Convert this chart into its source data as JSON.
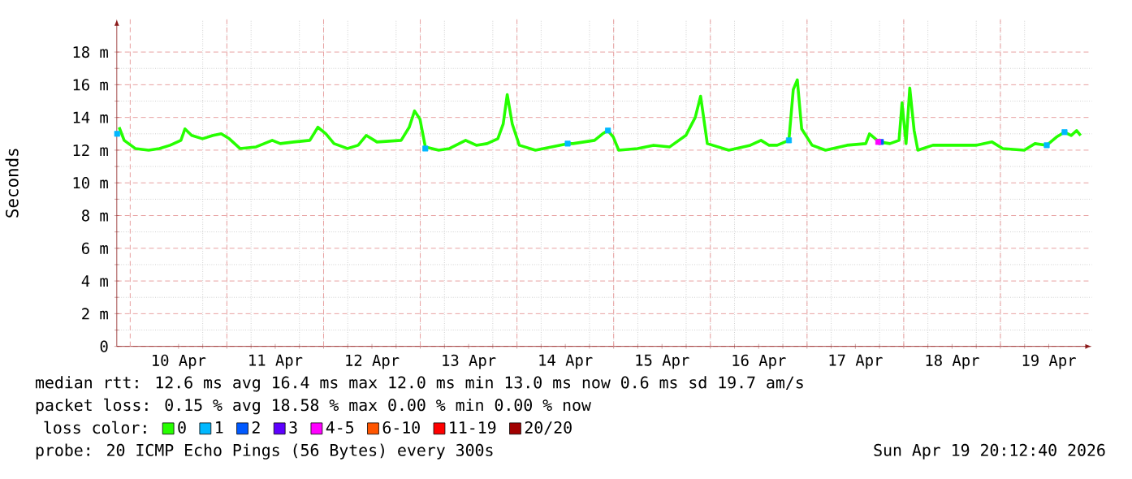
{
  "chart_data": {
    "type": "line",
    "ylabel": "Seconds",
    "legend_title": "loss color:",
    "legend": "bottom",
    "grid": true,
    "xlim": [
      "2026-04-09T20:40",
      "2026-04-19T22:40"
    ],
    "xticks": [
      {
        "value": "2026-04-10T12:00",
        "label": "10 Apr"
      },
      {
        "value": "2026-04-11T12:00",
        "label": "11 Apr"
      },
      {
        "value": "2026-04-12T12:00",
        "label": "12 Apr"
      },
      {
        "value": "2026-04-13T12:00",
        "label": "13 Apr"
      },
      {
        "value": "2026-04-14T12:00",
        "label": "14 Apr"
      },
      {
        "value": "2026-04-15T12:00",
        "label": "15 Apr"
      },
      {
        "value": "2026-04-16T12:00",
        "label": "16 Apr"
      },
      {
        "value": "2026-04-17T12:00",
        "label": "17 Apr"
      },
      {
        "value": "2026-04-18T12:00",
        "label": "18 Apr"
      },
      {
        "value": "2026-04-19T12:00",
        "label": "19 Apr"
      },
      {
        "value": "2026-04-10T00:00",
        "label": null
      },
      {
        "value": "2026-04-11T00:00",
        "label": null
      },
      {
        "value": "2026-04-12T00:00",
        "label": null
      },
      {
        "value": "2026-04-13T00:00",
        "label": null
      },
      {
        "value": "2026-04-14T00:00",
        "label": null
      },
      {
        "value": "2026-04-15T00:00",
        "label": null
      },
      {
        "value": "2026-04-16T00:00",
        "label": null
      },
      {
        "value": "2026-04-17T00:00",
        "label": null
      },
      {
        "value": "2026-04-18T00:00",
        "label": null
      },
      {
        "value": "2026-04-19T00:00",
        "label": null
      }
    ],
    "ylim": [
      0,
      20
    ],
    "yticks": [
      0,
      {
        "value": 2,
        "label": "2 m"
      },
      {
        "value": 4,
        "label": "4 m"
      },
      {
        "value": 6,
        "label": "6 m"
      },
      {
        "value": 8,
        "label": "8 m"
      },
      {
        "value": 10,
        "label": "10 m"
      },
      {
        "value": 12,
        "label": "12 m"
      },
      {
        "value": 14,
        "label": "14 m"
      },
      {
        "value": 16,
        "label": "16 m"
      },
      {
        "value": 18,
        "label": "18 m"
      }
    ],
    "series": [
      {
        "name": "0",
        "color": "#26ff00",
        "x": [
          "2026-04-09T21:15",
          "2026-04-09T22:30",
          "2026-04-10T01:15",
          "2026-04-10T04:35",
          "2026-04-10T07:15",
          "2026-04-10T09:55",
          "2026-04-10T12:35",
          "2026-04-10T13:35",
          "2026-04-10T15:15",
          "2026-04-10T17:55",
          "2026-04-10T20:35",
          "2026-04-10T22:35",
          "2026-04-11T00:35",
          "2026-04-11T03:15",
          "2026-04-11T07:15",
          "2026-04-11T11:15",
          "2026-04-11T13:15",
          "2026-04-11T16:35",
          "2026-04-11T20:35",
          "2026-04-11T22:35",
          "2026-04-12T00:35",
          "2026-04-12T02:35",
          "2026-04-12T05:55",
          "2026-04-12T08:35",
          "2026-04-12T10:35",
          "2026-04-12T13:15",
          "2026-04-12T19:15",
          "2026-04-12T21:15",
          "2026-04-12T22:35",
          "2026-04-12T23:55",
          "2026-04-13T01:15",
          "2026-04-13T04:35",
          "2026-04-13T07:15",
          "2026-04-13T11:15",
          "2026-04-13T13:55",
          "2026-04-13T16:35",
          "2026-04-13T19:15",
          "2026-04-13T20:35",
          "2026-04-13T21:35",
          "2026-04-13T22:50",
          "2026-04-14T00:35",
          "2026-04-14T04:35",
          "2026-04-14T08:35",
          "2026-04-14T12:35",
          "2026-04-14T13:55",
          "2026-04-14T19:15",
          "2026-04-14T21:15",
          "2026-04-14T22:35",
          "2026-04-14T23:55",
          "2026-04-15T01:15",
          "2026-04-15T05:55",
          "2026-04-15T09:55",
          "2026-04-15T13:55",
          "2026-04-15T17:55",
          "2026-04-15T20:15",
          "2026-04-15T21:35",
          "2026-04-15T23:15",
          "2026-04-16T04:35",
          "2026-04-16T09:55",
          "2026-04-16T12:35",
          "2026-04-16T14:35",
          "2026-04-16T16:35",
          "2026-04-16T19:30",
          "2026-04-16T20:35",
          "2026-04-16T21:35",
          "2026-04-16T22:40",
          "2026-04-17T01:15",
          "2026-04-17T04:35",
          "2026-04-17T09:55",
          "2026-04-17T14:35",
          "2026-04-17T15:30",
          "2026-04-17T17:55",
          "2026-04-17T20:35",
          "2026-04-17T22:50",
          "2026-04-17T23:35",
          "2026-04-18T00:35",
          "2026-04-18T01:30",
          "2026-04-18T02:35",
          "2026-04-18T03:30",
          "2026-04-18T07:15",
          "2026-04-18T12:35",
          "2026-04-18T17:55",
          "2026-04-18T21:55",
          "2026-04-19T00:35",
          "2026-04-19T05:55",
          "2026-04-19T08:35",
          "2026-04-19T11:30",
          "2026-04-19T13:55",
          "2026-04-19T15:55",
          "2026-04-19T17:35",
          "2026-04-19T18:55",
          "2026-04-19T19:55"
        ],
        "values": [
          13.4,
          12.6,
          12.1,
          12.0,
          12.1,
          12.3,
          12.6,
          13.3,
          12.9,
          12.7,
          12.9,
          13.0,
          12.7,
          12.1,
          12.2,
          12.6,
          12.4,
          12.5,
          12.6,
          13.4,
          13.0,
          12.4,
          12.1,
          12.3,
          12.9,
          12.5,
          12.6,
          13.4,
          14.4,
          13.9,
          12.2,
          12.0,
          12.1,
          12.6,
          12.3,
          12.4,
          12.7,
          13.6,
          15.4,
          13.6,
          12.3,
          12.0,
          12.2,
          12.4,
          12.4,
          12.6,
          13.0,
          13.2,
          12.8,
          12.0,
          12.1,
          12.3,
          12.2,
          12.9,
          14.0,
          15.3,
          12.4,
          12.0,
          12.3,
          12.6,
          12.3,
          12.3,
          12.6,
          15.7,
          16.3,
          13.3,
          12.3,
          12.0,
          12.3,
          12.4,
          13.0,
          12.5,
          12.4,
          12.6,
          14.9,
          12.4,
          15.8,
          13.2,
          12.0,
          12.3,
          12.3,
          12.3,
          12.5,
          12.1,
          12.0,
          12.4,
          12.3,
          12.8,
          13.1,
          12.9,
          13.2,
          12.9
        ]
      },
      {
        "name": "1",
        "type": "scatter",
        "marker": "square",
        "color": "#00b8ff",
        "x": [
          "2026-04-09T20:45",
          "2026-04-13T01:15",
          "2026-04-14T12:35",
          "2026-04-14T22:35",
          "2026-04-16T19:30",
          "2026-04-19T11:30",
          "2026-04-19T15:55"
        ],
        "values": [
          13.0,
          12.1,
          12.4,
          13.2,
          12.6,
          12.3,
          13.1
        ]
      },
      {
        "name": "2",
        "type": "scatter",
        "marker": "square",
        "color": "#0059ff",
        "x": [
          "2026-04-17T18:20"
        ],
        "values": [
          12.5
        ]
      },
      {
        "name": "3",
        "type": "scatter",
        "marker": "square",
        "color": "#5e00ff"
      },
      {
        "name": "4-5",
        "type": "scatter",
        "marker": "square",
        "color": "#ff00ff",
        "x": [
          "2026-04-17T17:40"
        ],
        "values": [
          12.5
        ]
      },
      {
        "name": "6-10",
        "type": "scatter",
        "marker": "square",
        "color": "#ff5500"
      },
      {
        "name": "11-19",
        "type": "scatter",
        "marker": "square",
        "color": "#ff0000"
      },
      {
        "name": "20/20",
        "type": "scatter",
        "marker": "square",
        "color": "#a10000"
      }
    ],
    "annotations": [
      "median rtt: 12.6 ms avg 16.4 ms max 12.0 ms min 13.0 ms now 0.6 ms sd 19.7 am/s",
      "packet loss: 0.15 % avg 18.58 % max 0.00 % min 0.00 % now",
      "probe: 20 ICMP Echo Pings (56 Bytes) every 300s",
      "Sun Apr 19 20:12:40 2026"
    ]
  }
}
